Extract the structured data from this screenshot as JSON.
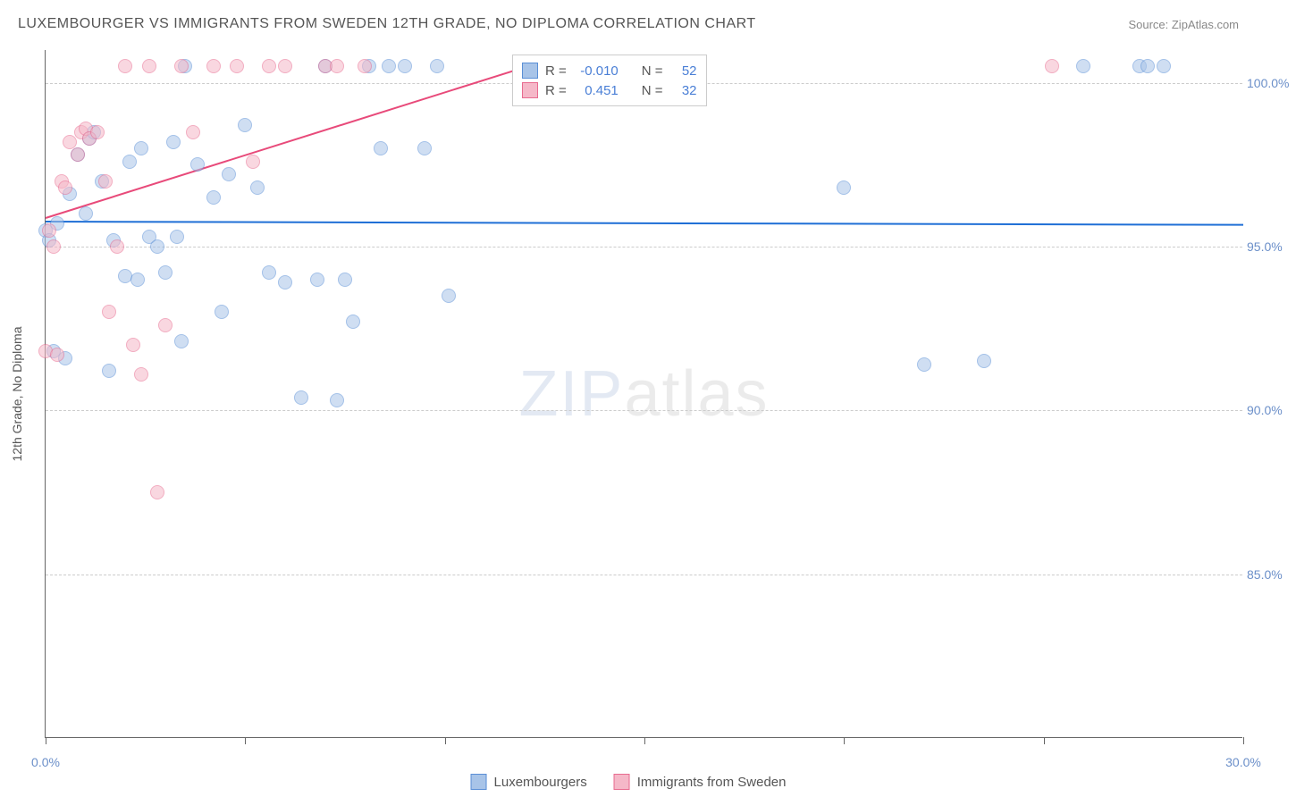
{
  "title": "LUXEMBOURGER VS IMMIGRANTS FROM SWEDEN 12TH GRADE, NO DIPLOMA CORRELATION CHART",
  "source": "Source: ZipAtlas.com",
  "y_axis_title": "12th Grade, No Diploma",
  "watermark": {
    "part1": "ZIP",
    "part2": "atlas"
  },
  "chart": {
    "type": "scatter",
    "background_color": "#ffffff",
    "grid_color": "#cccccc",
    "axis_color": "#666666",
    "label_color": "#6b8fc9",
    "xlim": [
      0,
      30
    ],
    "ylim": [
      80,
      101
    ],
    "y_ticks": [
      85,
      90,
      95,
      100
    ],
    "y_tick_labels": [
      "85.0%",
      "90.0%",
      "95.0%",
      "100.0%"
    ],
    "x_ticks": [
      0,
      15,
      30
    ],
    "x_tick_labels": [
      "0.0%",
      "",
      "30.0%"
    ],
    "x_minor_ticks": [
      5,
      10,
      20,
      25
    ],
    "marker_radius": 8,
    "marker_border_width": 1.5,
    "series": [
      {
        "name": "Luxembourgers",
        "fill": "#a8c4e8",
        "stroke": "#5a8fd6",
        "fill_opacity": 0.55,
        "r_value": "-0.010",
        "n_value": "52",
        "trend": {
          "x1": 0,
          "y1": 95.8,
          "x2": 30,
          "y2": 95.7,
          "color": "#1f6fd6",
          "width": 2
        },
        "points": [
          [
            0.0,
            95.5
          ],
          [
            0.1,
            95.2
          ],
          [
            0.3,
            95.7
          ],
          [
            0.2,
            91.8
          ],
          [
            0.5,
            91.6
          ],
          [
            0.6,
            96.6
          ],
          [
            0.8,
            97.8
          ],
          [
            1.0,
            96.0
          ],
          [
            1.1,
            98.3
          ],
          [
            1.2,
            98.5
          ],
          [
            1.4,
            97.0
          ],
          [
            1.6,
            91.2
          ],
          [
            1.7,
            95.2
          ],
          [
            2.0,
            94.1
          ],
          [
            2.1,
            97.6
          ],
          [
            2.3,
            94.0
          ],
          [
            2.4,
            98.0
          ],
          [
            2.6,
            95.3
          ],
          [
            2.8,
            95.0
          ],
          [
            3.0,
            94.2
          ],
          [
            3.2,
            98.2
          ],
          [
            3.3,
            95.3
          ],
          [
            3.4,
            92.1
          ],
          [
            3.5,
            100.5
          ],
          [
            3.8,
            97.5
          ],
          [
            4.2,
            96.5
          ],
          [
            4.4,
            93.0
          ],
          [
            4.6,
            97.2
          ],
          [
            5.0,
            98.7
          ],
          [
            5.3,
            96.8
          ],
          [
            5.6,
            94.2
          ],
          [
            6.0,
            93.9
          ],
          [
            6.4,
            90.4
          ],
          [
            6.8,
            94.0
          ],
          [
            7.0,
            100.5
          ],
          [
            7.3,
            90.3
          ],
          [
            7.5,
            94.0
          ],
          [
            7.7,
            92.7
          ],
          [
            8.1,
            100.5
          ],
          [
            8.4,
            98.0
          ],
          [
            8.6,
            100.5
          ],
          [
            9.0,
            100.5
          ],
          [
            9.5,
            98.0
          ],
          [
            9.8,
            100.5
          ],
          [
            10.1,
            93.5
          ],
          [
            20.0,
            96.8
          ],
          [
            22.0,
            91.4
          ],
          [
            23.5,
            91.5
          ],
          [
            26.0,
            100.5
          ],
          [
            27.4,
            100.5
          ],
          [
            27.6,
            100.5
          ],
          [
            28.0,
            100.5
          ]
        ]
      },
      {
        "name": "Immigrants from Sweden",
        "fill": "#f5b8c8",
        "stroke": "#e86b8f",
        "fill_opacity": 0.55,
        "r_value": "0.451",
        "n_value": "32",
        "trend": {
          "x1": 0,
          "y1": 95.9,
          "x2": 12,
          "y2": 100.5,
          "color": "#e84a7a",
          "width": 2
        },
        "points": [
          [
            0.0,
            91.8
          ],
          [
            0.1,
            95.5
          ],
          [
            0.2,
            95.0
          ],
          [
            0.3,
            91.7
          ],
          [
            0.4,
            97.0
          ],
          [
            0.5,
            96.8
          ],
          [
            0.6,
            98.2
          ],
          [
            0.8,
            97.8
          ],
          [
            0.9,
            98.5
          ],
          [
            1.0,
            98.6
          ],
          [
            1.1,
            98.3
          ],
          [
            1.3,
            98.5
          ],
          [
            1.5,
            97.0
          ],
          [
            1.6,
            93.0
          ],
          [
            1.8,
            95.0
          ],
          [
            2.0,
            100.5
          ],
          [
            2.2,
            92.0
          ],
          [
            2.4,
            91.1
          ],
          [
            2.6,
            100.5
          ],
          [
            2.8,
            87.5
          ],
          [
            3.0,
            92.6
          ],
          [
            3.4,
            100.5
          ],
          [
            3.7,
            98.5
          ],
          [
            4.2,
            100.5
          ],
          [
            4.8,
            100.5
          ],
          [
            5.2,
            97.6
          ],
          [
            5.6,
            100.5
          ],
          [
            6.0,
            100.5
          ],
          [
            7.0,
            100.5
          ],
          [
            7.3,
            100.5
          ],
          [
            8.0,
            100.5
          ],
          [
            25.2,
            100.5
          ]
        ]
      }
    ]
  },
  "legend_stats": {
    "r_label": "R =",
    "n_label": "N ="
  },
  "bottom_legend": {
    "items": [
      "Luxembourgers",
      "Immigrants from Sweden"
    ]
  }
}
